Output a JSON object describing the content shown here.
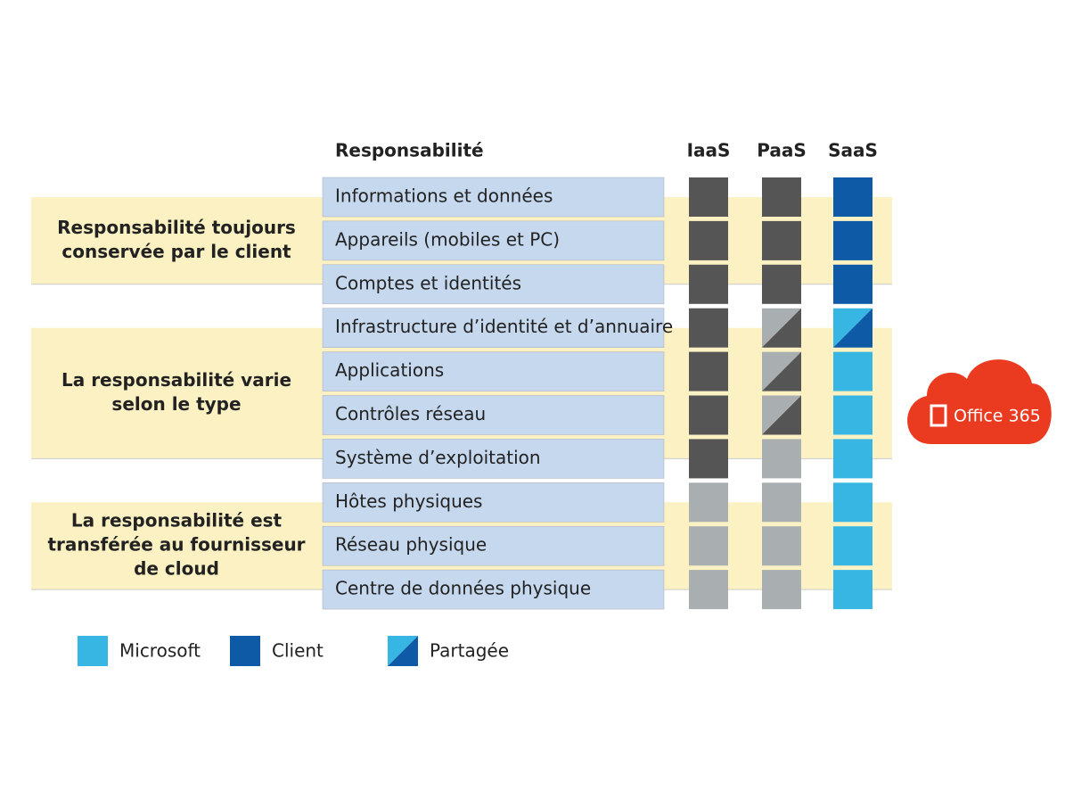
{
  "header": {
    "responsibility": "Responsabilité"
  },
  "groups": [
    {
      "label": [
        "Responsabilité toujours",
        "conservée par le client"
      ],
      "first_row": 0,
      "last_row": 2
    },
    {
      "label": [
        "La responsabilité varie",
        "selon le type"
      ],
      "first_row": 3,
      "last_row": 6
    },
    {
      "label": [
        "La responsabilité est",
        "transférée au fournisseur",
        "de cloud"
      ],
      "first_row": 7,
      "last_row": 9
    }
  ],
  "rows": [
    "Informations et données",
    "Appareils (mobiles et PC)",
    "Comptes et identités",
    "Infrastructure d’identité et d’annuaire",
    "Applications",
    "Contrôles réseau",
    "Système d’exploitation",
    "Hôtes physiques",
    "Réseau physique",
    "Centre de données physique"
  ],
  "columns": [
    {
      "label": "IaaS",
      "scheme": "gray",
      "cells": [
        "client",
        "client",
        "client",
        "client",
        "client",
        "client",
        "client",
        "microsoft",
        "microsoft",
        "microsoft"
      ]
    },
    {
      "label": "PaaS",
      "scheme": "gray",
      "cells": [
        "client",
        "client",
        "client",
        "shared",
        "shared",
        "shared",
        "microsoft",
        "microsoft",
        "microsoft",
        "microsoft"
      ]
    },
    {
      "label": "SaaS",
      "scheme": "blue",
      "cells": [
        "client",
        "client",
        "client",
        "shared",
        "microsoft",
        "microsoft",
        "microsoft",
        "microsoft",
        "microsoft",
        "microsoft"
      ]
    }
  ],
  "colors": {
    "gray": {
      "client": "#555555",
      "microsoft": "#a9aeb1"
    },
    "blue": {
      "client": "#0e5aa7",
      "microsoft": "#38b6e3"
    }
  },
  "legend": [
    {
      "label": "Microsoft",
      "state": "microsoft"
    },
    {
      "label": "Client",
      "state": "client"
    },
    {
      "label": "Partagée",
      "state": "shared"
    }
  ],
  "badge": {
    "label": "Office 365"
  }
}
